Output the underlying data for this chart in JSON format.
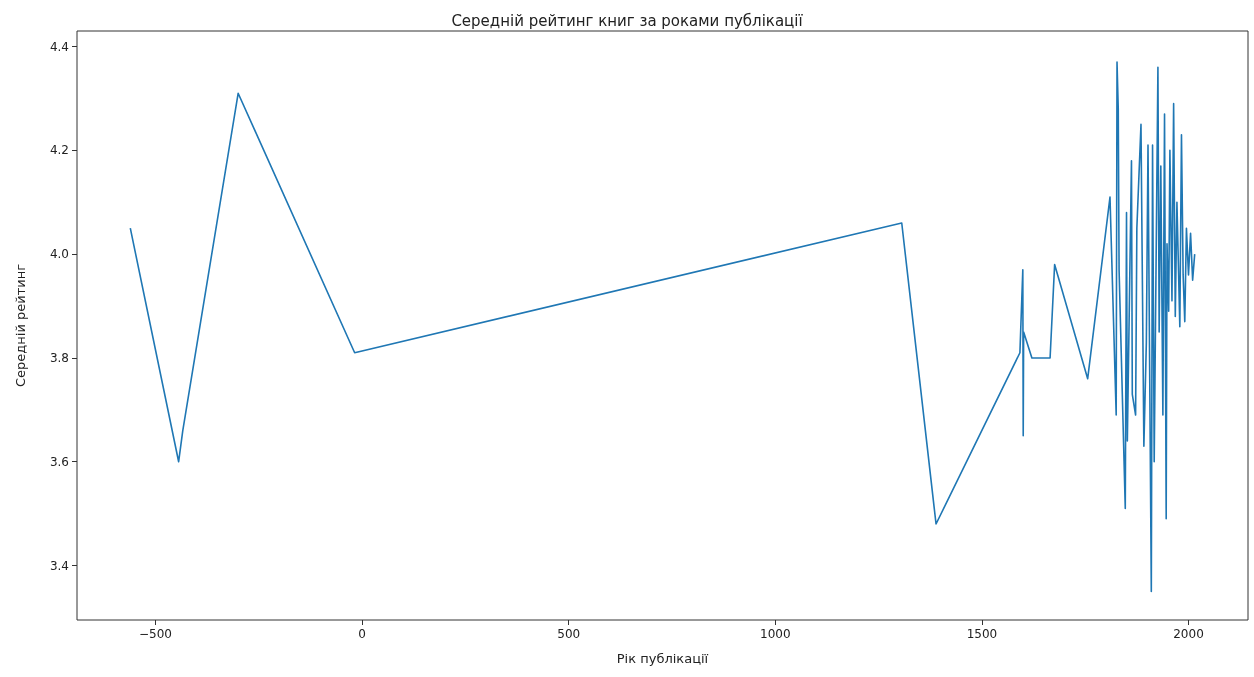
{
  "chart_data": {
    "type": "line",
    "title": "Середній рейтинг книг за роками публікації",
    "xlabel": "Рік публікації",
    "ylabel": "Середній рейтинг",
    "x": [
      -561,
      -444,
      -434,
      -300,
      -18,
      1306,
      1389,
      1592,
      1599,
      1600,
      1601,
      1621,
      1665,
      1676,
      1756,
      1810,
      1825,
      1827,
      1830,
      1832,
      1847,
      1850,
      1852,
      1862,
      1864,
      1872,
      1875,
      1885,
      1892,
      1898,
      1902,
      1910,
      1913,
      1917,
      1926,
      1929,
      1933,
      1938,
      1942,
      1946,
      1948,
      1952,
      1955,
      1960,
      1964,
      1968,
      1972,
      1979,
      1983,
      1987,
      1991,
      1995,
      2000,
      2005,
      2010,
      2015
    ],
    "values": [
      4.05,
      3.6,
      3.66,
      4.31,
      3.81,
      4.06,
      3.48,
      3.81,
      3.97,
      3.65,
      3.85,
      3.8,
      3.8,
      3.98,
      3.76,
      4.11,
      3.69,
      4.37,
      4.28,
      3.97,
      3.51,
      4.08,
      3.64,
      4.18,
      3.73,
      3.69,
      4.05,
      4.25,
      3.63,
      3.83,
      4.21,
      3.35,
      4.21,
      3.6,
      4.36,
      3.85,
      4.17,
      3.69,
      4.27,
      3.49,
      4.02,
      3.89,
      4.2,
      3.91,
      4.29,
      3.88,
      4.1,
      3.86,
      4.23,
      3.96,
      3.87,
      4.05,
      3.96,
      4.04,
      3.95,
      4.0
    ],
    "color": "#1f77b4",
    "xlim": [
      -690,
      2144
    ],
    "xticks": [
      -500,
      0,
      500,
      1000,
      1500,
      2000
    ],
    "ylim": [
      3.295,
      4.43
    ],
    "yticks": [
      3.4,
      3.6,
      3.8,
      {
        "value": 4,
        "label": "4.0"
      },
      4.2,
      4.4
    ],
    "grid": false,
    "marker": "none",
    "line_style": "solid"
  }
}
